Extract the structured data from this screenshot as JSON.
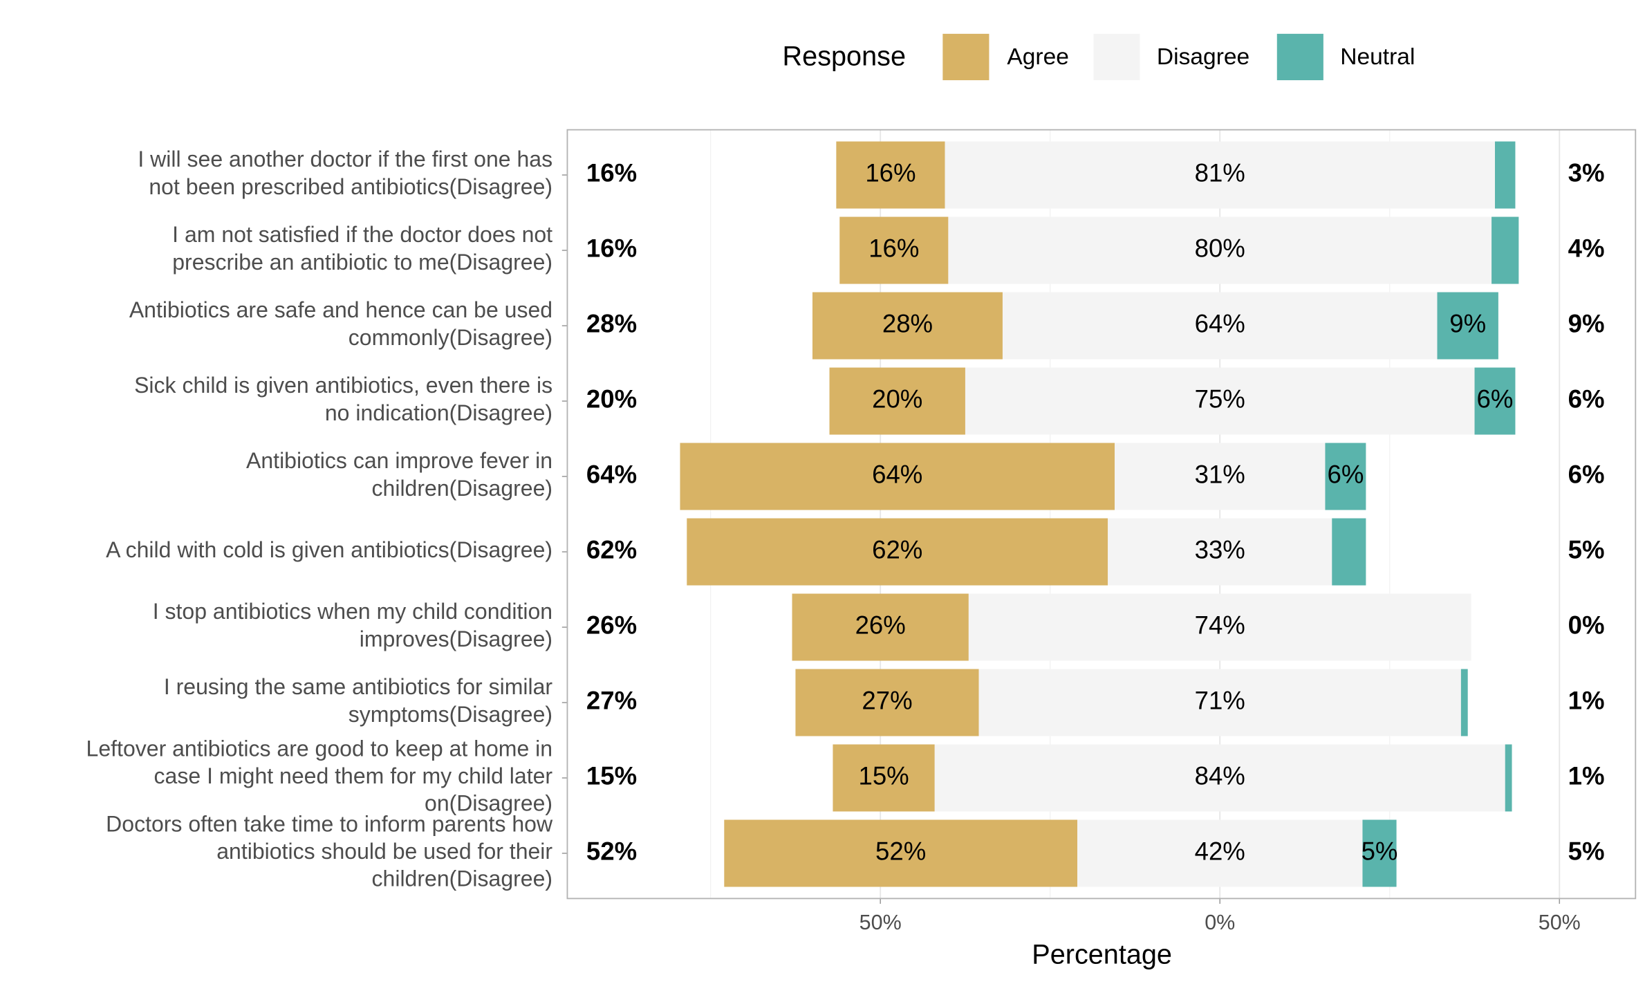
{
  "chart_data": {
    "type": "diverging_bar",
    "legend_title": "Response",
    "x_label": "Percentage",
    "legend_position": "top",
    "grid": true,
    "categories": [
      "I will see another doctor if the first one has\nnot been prescribed antibiotics(Disagree)",
      "I am not satisfied if the doctor does not\nprescribe an antibiotic to me(Disagree)",
      "Antibiotics are safe and hence can be used\ncommonly(Disagree)",
      "Sick child is given antibiotics, even there is\nno indication(Disagree)",
      "Antibiotics can improve fever in\nchildren(Disagree)",
      "A child with cold is given antibiotics(Disagree)",
      "I stop antibiotics when my child condition\nimproves(Disagree)",
      "I reusing the same antibiotics for similar\nsymptoms(Disagree)",
      "Leftover antibiotics are good to keep at home in\ncase I might need them for my child later\non(Disagree)",
      "Doctors often take time to inform parents how\nantibiotics should be used for their\nchildren(Disagree)"
    ],
    "series": [
      {
        "name": "Agree",
        "color": "#d8b365",
        "values": [
          16,
          16,
          28,
          20,
          64,
          62,
          26,
          27,
          15,
          52
        ],
        "value_labels": [
          "16%",
          "16%",
          "28%",
          "20%",
          "64%",
          "62%",
          "26%",
          "27%",
          "15%",
          "52%"
        ]
      },
      {
        "name": "Disagree",
        "color": "#f4f4f4",
        "values": [
          81,
          80,
          64,
          75,
          31,
          33,
          74,
          71,
          84,
          42
        ],
        "value_labels": [
          "81%",
          "80%",
          "64%",
          "75%",
          "31%",
          "33%",
          "74%",
          "71%",
          "84%",
          "42%"
        ]
      },
      {
        "name": "Neutral",
        "color": "#5ab4ac",
        "values": [
          3,
          4,
          9,
          6,
          6,
          5,
          0,
          1,
          1,
          5
        ],
        "value_labels": [
          "3%",
          "4%",
          "9%",
          "6%",
          "6%",
          "5%",
          "0%",
          "1%",
          "1%",
          "5%"
        ],
        "show_inner_label": [
          false,
          false,
          true,
          true,
          true,
          false,
          false,
          false,
          false,
          true
        ]
      }
    ],
    "xlim": [
      -96.1,
      61.2
    ],
    "xticks": [
      {
        "value": -50,
        "label": "50%"
      },
      {
        "value": 0,
        "label": "0%"
      },
      {
        "value": 50,
        "label": "50%"
      }
    ],
    "minor_xticks": [
      -75,
      -25,
      25
    ]
  }
}
